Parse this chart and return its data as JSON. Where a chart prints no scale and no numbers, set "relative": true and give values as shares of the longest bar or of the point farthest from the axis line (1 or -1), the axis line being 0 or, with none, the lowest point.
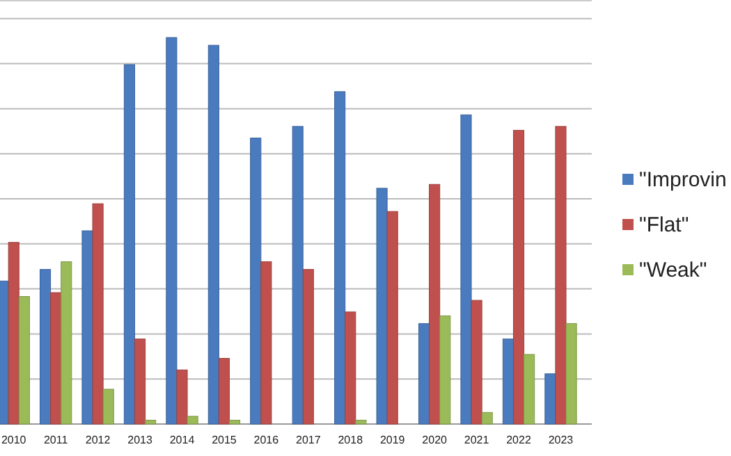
{
  "chart_data": {
    "type": "bar",
    "relative": true,
    "grid": "y",
    "legend": "right",
    "categories": [
      "2010",
      "2011",
      "2012",
      "2013",
      "2014",
      "2015",
      "2016",
      "2017",
      "2018",
      "2019",
      "2020",
      "2021",
      "2022",
      "2023"
    ],
    "series": [
      {
        "name": "\"Improvin",
        "color": "#4a7bbf",
        "values": [
          0.37,
          0.4,
          0.5,
          0.93,
          1,
          0.98,
          0.74,
          0.77,
          0.86,
          0.61,
          0.26,
          0.8,
          0.22,
          0.13
        ]
      },
      {
        "name": "\"Flat\"",
        "color": "#c0504d",
        "values": [
          0.47,
          0.34,
          0.57,
          0.22,
          0.14,
          0.17,
          0.42,
          0.4,
          0.29,
          0.55,
          0.62,
          0.32,
          0.76,
          0.77
        ]
      },
      {
        "name": "\"Weak\"",
        "color": "#9bbb59",
        "values": [
          0.33,
          0.42,
          0.09,
          0.01,
          0.02,
          0.01,
          0,
          0,
          0.01,
          0,
          0.28,
          0.03,
          0.18,
          0.26
        ]
      }
    ]
  }
}
